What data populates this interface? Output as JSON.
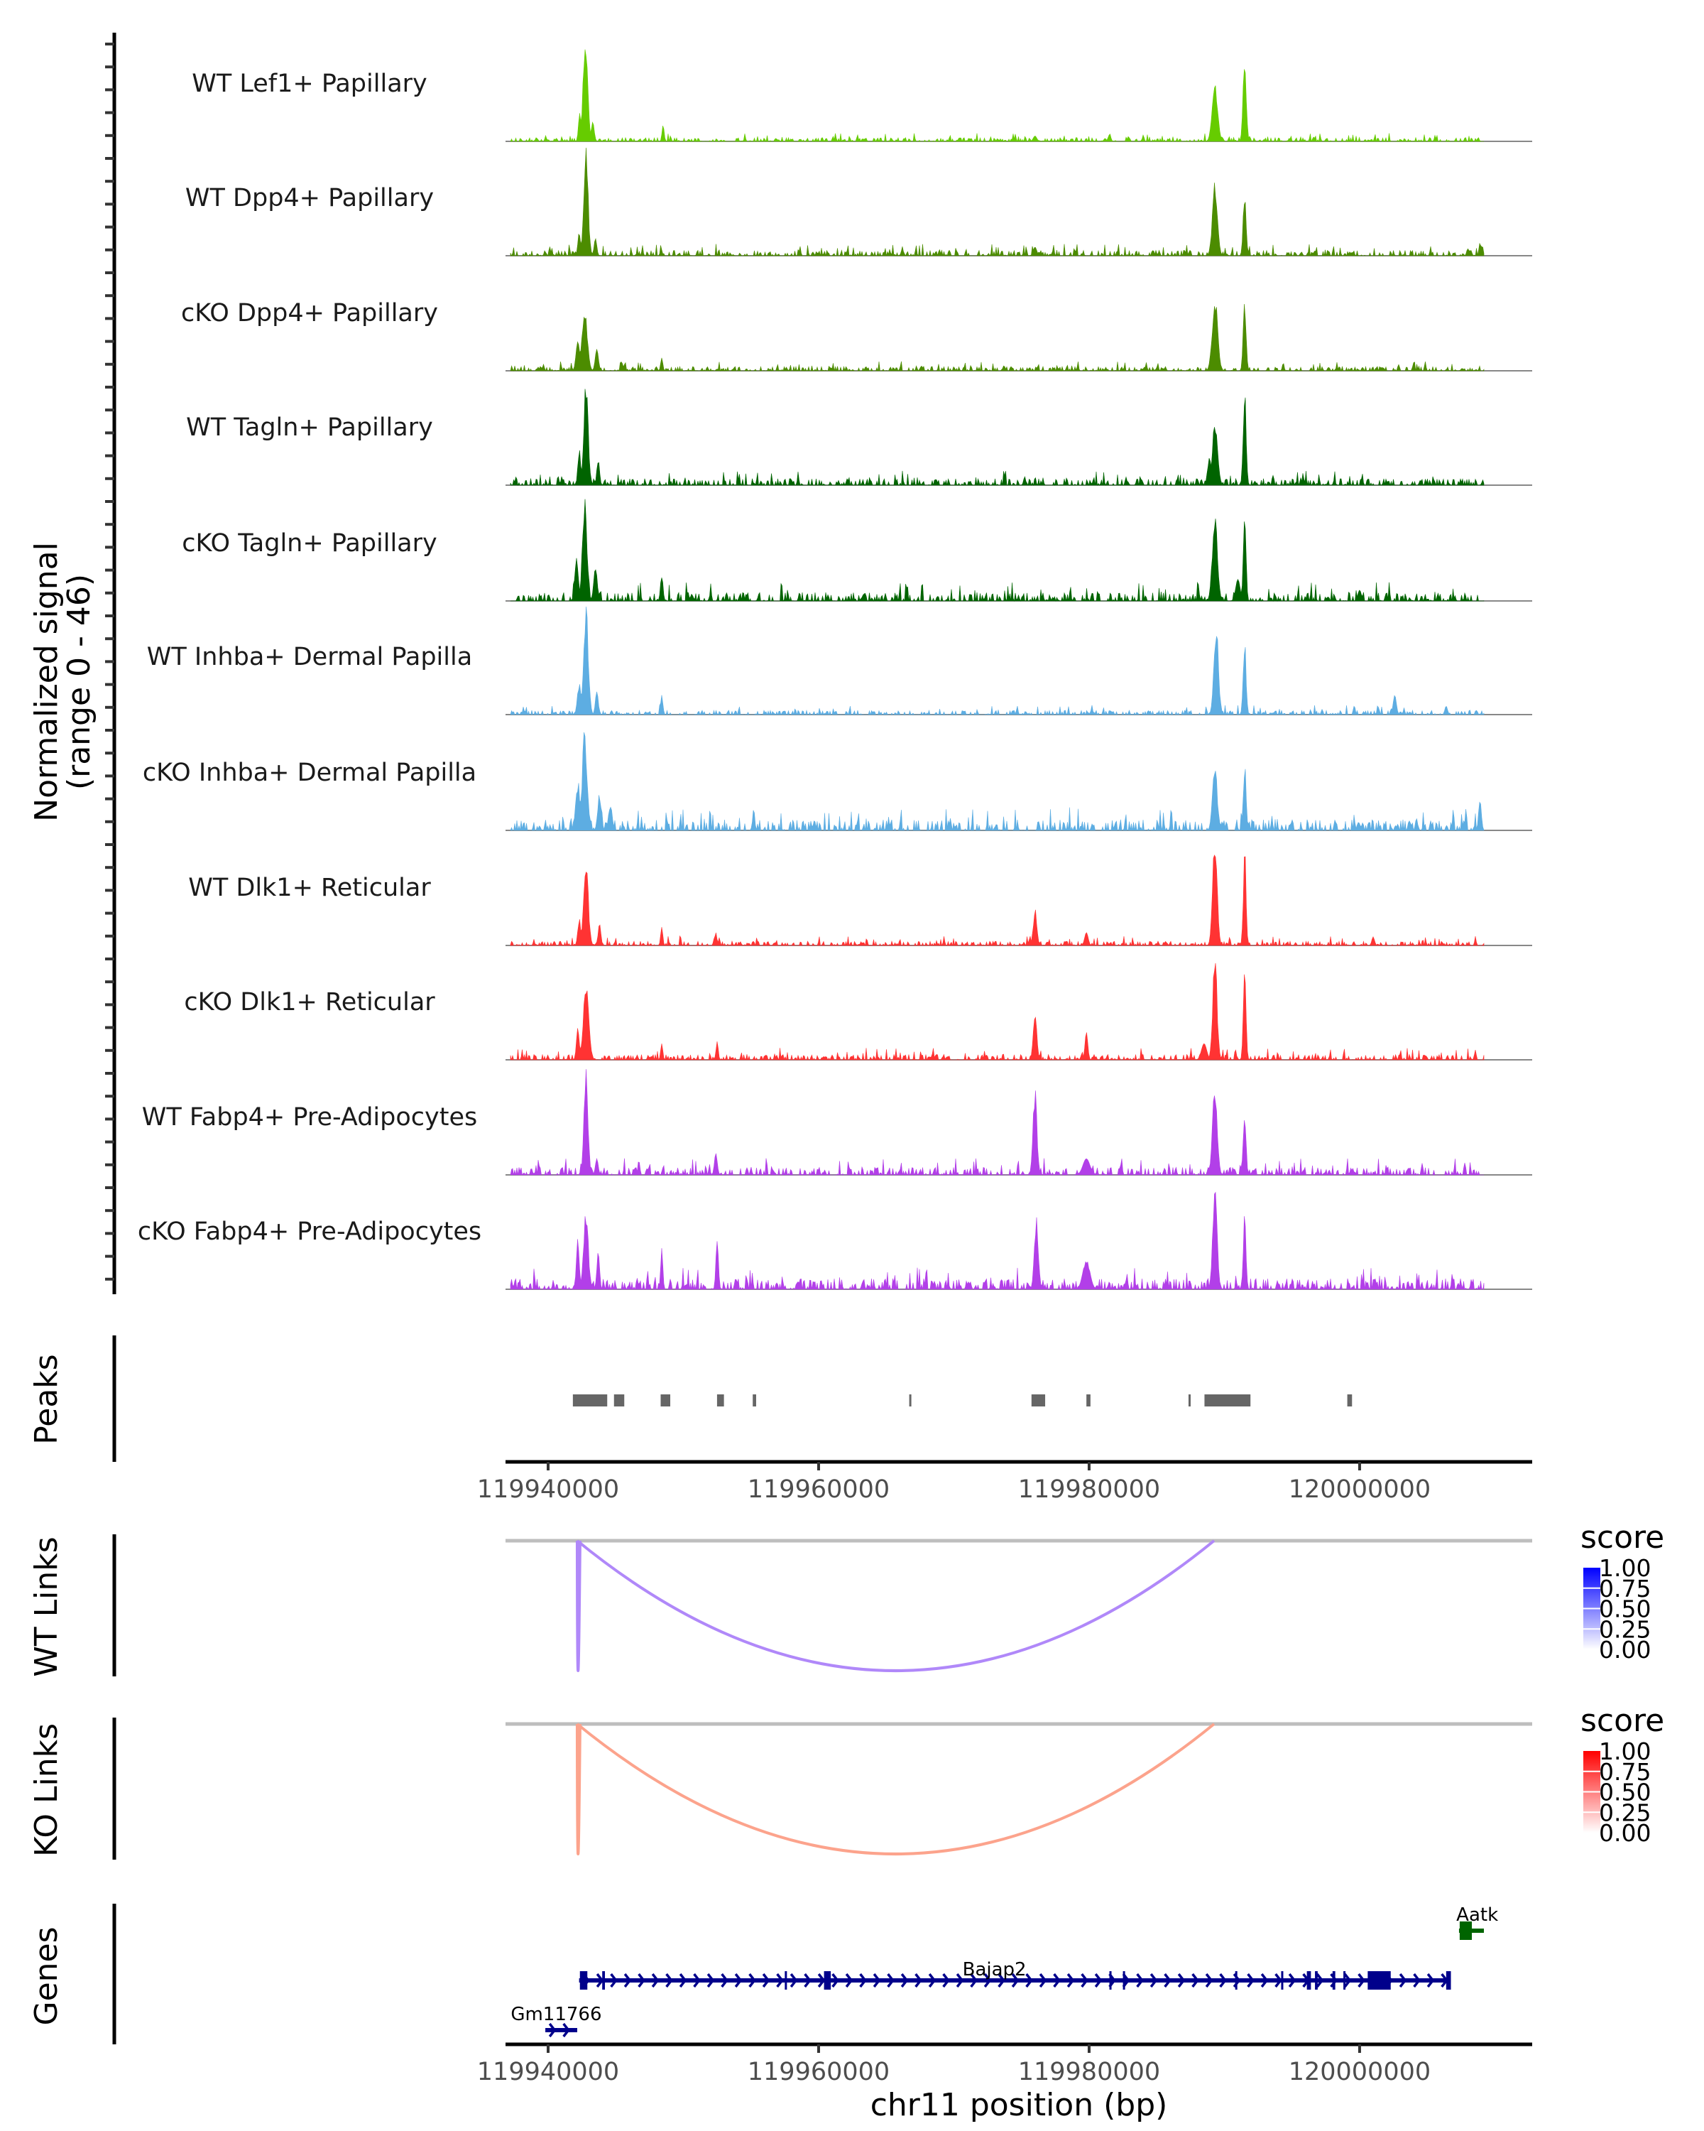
{
  "chart_data": {
    "type": "area",
    "title": "",
    "xlabel": "chr11 position (bp)",
    "ylabel": "Normalized signal\n(range 0 - 46)",
    "ylabel_lines": [
      "Normalized signal",
      "(range 0 - 46)"
    ],
    "ylim": [
      0,
      46
    ],
    "xlim": [
      119936850,
      120012760
    ],
    "x_ticks": [
      119940000,
      119960000,
      119980000,
      120000000
    ],
    "x_tick_labels": [
      "119940000",
      "119960000",
      "119980000",
      "120000000"
    ],
    "grid": false,
    "tracks": [
      {
        "name": "WT Lef1+ Papillary",
        "color": "#66CC00",
        "peaks": [
          [
            119942750,
            0.95,
            260
          ],
          [
            119942350,
            0.28,
            150
          ],
          [
            119943300,
            0.18,
            160
          ],
          [
            119948500,
            0.15,
            120
          ],
          [
            119989300,
            0.55,
            300
          ],
          [
            119991500,
            0.77,
            180
          ],
          [
            119976000,
            0.05,
            200
          ],
          [
            119981500,
            0.06,
            150
          ]
        ],
        "noise": 0.035
      },
      {
        "name": "WT Dpp4+ Papillary",
        "color": "#4C8C00",
        "peaks": [
          [
            119942800,
            1.0,
            240
          ],
          [
            119942300,
            0.22,
            150
          ],
          [
            119943500,
            0.16,
            150
          ],
          [
            119989300,
            0.67,
            280
          ],
          [
            119991500,
            0.61,
            160
          ],
          [
            120008900,
            0.12,
            120
          ],
          [
            119976000,
            0.08,
            200
          ]
        ],
        "noise": 0.05
      },
      {
        "name": "cKO Dpp4+ Papillary",
        "color": "#4C8C00",
        "peaks": [
          [
            119942700,
            0.55,
            300
          ],
          [
            119942200,
            0.3,
            200
          ],
          [
            119943600,
            0.2,
            180
          ],
          [
            119948400,
            0.12,
            120
          ],
          [
            119989300,
            0.7,
            300
          ],
          [
            119991500,
            0.67,
            160
          ]
        ],
        "noise": 0.04
      },
      {
        "name": "WT Tagln+ Papillary",
        "color": "#006400",
        "peaks": [
          [
            119942800,
            0.97,
            240
          ],
          [
            119942300,
            0.35,
            150
          ],
          [
            119943700,
            0.25,
            150
          ],
          [
            119989300,
            0.55,
            300
          ],
          [
            119988900,
            0.3,
            200
          ],
          [
            119991500,
            0.95,
            160
          ]
        ],
        "noise": 0.06
      },
      {
        "name": "cKO Tagln+ Papillary",
        "color": "#006400",
        "peaks": [
          [
            119942700,
            0.93,
            260
          ],
          [
            119942100,
            0.4,
            200
          ],
          [
            119943500,
            0.3,
            200
          ],
          [
            119948400,
            0.25,
            140
          ],
          [
            119989300,
            0.83,
            280
          ],
          [
            119991500,
            0.85,
            150
          ],
          [
            119991000,
            0.2,
            250
          ],
          [
            120000000,
            0.1,
            200
          ]
        ],
        "noise": 0.08
      },
      {
        "name": "WT Inhba+ Dermal Papilla",
        "color": "#5DADE2",
        "peaks": [
          [
            119942800,
            1.0,
            260
          ],
          [
            119942300,
            0.3,
            200
          ],
          [
            119943600,
            0.22,
            160
          ],
          [
            119948400,
            0.18,
            120
          ],
          [
            119989400,
            0.8,
            260
          ],
          [
            119991500,
            0.72,
            160
          ],
          [
            120002600,
            0.18,
            180
          ],
          [
            120006400,
            0.08,
            150
          ]
        ],
        "noise": 0.04
      },
      {
        "name": "cKO Inhba+ Dermal Papilla",
        "color": "#5DADE2",
        "peaks": [
          [
            119942700,
            0.9,
            280
          ],
          [
            119942200,
            0.45,
            240
          ],
          [
            119943800,
            0.35,
            200
          ],
          [
            119944600,
            0.25,
            200
          ],
          [
            119955200,
            0.2,
            120
          ],
          [
            119989300,
            0.62,
            260
          ],
          [
            119991500,
            0.62,
            160
          ],
          [
            120008900,
            0.3,
            150
          ]
        ],
        "noise": 0.1
      },
      {
        "name": "WT Dlk1+ Reticular",
        "color": "#FF3333",
        "peaks": [
          [
            119942800,
            0.8,
            260
          ],
          [
            119942300,
            0.25,
            160
          ],
          [
            119943800,
            0.2,
            150
          ],
          [
            119948400,
            0.17,
            120
          ],
          [
            119952400,
            0.12,
            120
          ],
          [
            119976000,
            0.34,
            200
          ],
          [
            119979800,
            0.12,
            200
          ],
          [
            119989300,
            1.0,
            250
          ],
          [
            119991500,
            0.91,
            150
          ],
          [
            120001000,
            0.08,
            150
          ]
        ],
        "noise": 0.04
      },
      {
        "name": "cKO Dlk1+ Reticular",
        "color": "#FF3333",
        "peaks": [
          [
            119942800,
            0.72,
            300
          ],
          [
            119942200,
            0.3,
            160
          ],
          [
            119948400,
            0.15,
            120
          ],
          [
            119952500,
            0.17,
            120
          ],
          [
            119976000,
            0.42,
            200
          ],
          [
            119979800,
            0.25,
            160
          ],
          [
            119989300,
            1.0,
            240
          ],
          [
            119991500,
            0.81,
            150
          ],
          [
            119988500,
            0.15,
            300
          ]
        ],
        "noise": 0.05
      },
      {
        "name": "WT Fabp4+ Pre-Adipocytes",
        "color": "#B23FE8",
        "peaks": [
          [
            119942800,
            1.0,
            220
          ],
          [
            119943600,
            0.15,
            160
          ],
          [
            119952400,
            0.2,
            160
          ],
          [
            119976000,
            0.78,
            220
          ],
          [
            119979800,
            0.15,
            400
          ],
          [
            119989300,
            0.86,
            260
          ],
          [
            119991500,
            0.62,
            150
          ]
        ],
        "noise": 0.07
      },
      {
        "name": "cKO Fabp4+ Pre-Adipocytes",
        "color": "#B23FE8",
        "peaks": [
          [
            119942800,
            0.74,
            260
          ],
          [
            119942200,
            0.5,
            160
          ],
          [
            119943700,
            0.38,
            150
          ],
          [
            119948400,
            0.41,
            120
          ],
          [
            119952500,
            0.47,
            140
          ],
          [
            119976100,
            0.68,
            220
          ],
          [
            119979800,
            0.27,
            400
          ],
          [
            119989300,
            0.99,
            240
          ],
          [
            119991500,
            0.7,
            150
          ]
        ],
        "noise": 0.1
      }
    ],
    "peaks_track": {
      "label": "Peaks",
      "color": "#666666",
      "regions": [
        [
          119941830,
          119944370
        ],
        [
          119944870,
          119945630
        ],
        [
          119948320,
          119949030
        ],
        [
          119952490,
          119953000
        ],
        [
          119955130,
          119955380
        ],
        [
          119966700,
          119966850
        ],
        [
          119975740,
          119976750
        ],
        [
          119979800,
          119980100
        ],
        [
          119987350,
          119987500
        ],
        [
          119988530,
          119991930
        ],
        [
          119999090,
          119999440
        ]
      ]
    },
    "links_tracks": [
      {
        "label": "WT Links",
        "color_low": "#FFFFFF",
        "color_high": "#0000FF",
        "link_color": "#B088F9",
        "links": [
          {
            "start": 119942150,
            "end": 119989240,
            "score": 0.45
          },
          {
            "start": 119942150,
            "end": 119942200,
            "score": 0.45
          }
        ],
        "legend": {
          "title": "score",
          "ticks": [
            "1.00",
            "0.75",
            "0.50",
            "0.25",
            "0.00"
          ]
        }
      },
      {
        "label": "KO Links",
        "color_low": "#FFFFFF",
        "color_high": "#FF0000",
        "link_color": "#FCA38C",
        "links": [
          {
            "start": 119942150,
            "end": 119989240,
            "score": 0.4
          },
          {
            "start": 119942150,
            "end": 119942200,
            "score": 0.4
          }
        ],
        "legend": {
          "title": "score",
          "ticks": [
            "1.00",
            "0.75",
            "0.50",
            "0.25",
            "0.00"
          ]
        }
      }
    ],
    "genes_track": {
      "label": "Genes",
      "genes": [
        {
          "name": "Aatk",
          "start": 120007350,
          "end": 120009190,
          "strand": "-",
          "color": "#006400",
          "row": 0,
          "exons": [
            [
              120007400,
              120008300
            ]
          ]
        },
        {
          "name": "Bajap2",
          "start": 119942290,
          "end": 120006750,
          "strand": "+",
          "color": "#00008B",
          "row": 1,
          "exons": [
            [
              119942350,
              119942900
            ],
            [
              119944000,
              119944200
            ],
            [
              119957500,
              119957550
            ],
            [
              119960400,
              119960900
            ],
            [
              119981500,
              119981600
            ],
            [
              119982500,
              119982600
            ],
            [
              119990800,
              119990900
            ],
            [
              119994200,
              119994350
            ],
            [
              119996100,
              119996400
            ],
            [
              119996700,
              119996900
            ],
            [
              119998000,
              119998200
            ],
            [
              119998800,
              119998900
            ],
            [
              120000600,
              120002300
            ],
            [
              120006400,
              120006750
            ]
          ]
        },
        {
          "name": "Gm11766",
          "start": 119939800,
          "end": 119942150,
          "strand": "+",
          "color": "#00008B",
          "row": 2,
          "exons": [
            [
              119939800,
              119942150
            ]
          ]
        }
      ]
    }
  }
}
